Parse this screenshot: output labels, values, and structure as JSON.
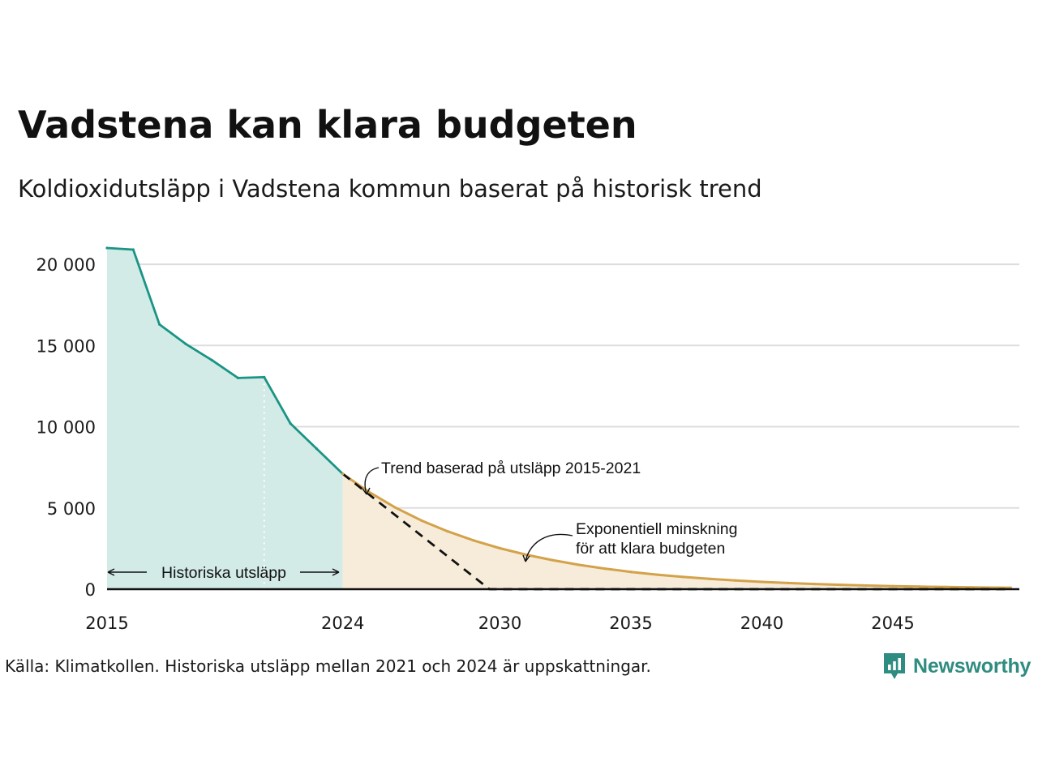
{
  "header": {
    "title": "Vadstena kan klara budgeten",
    "subtitle": "Koldioxidutsläpp i Vadstena kommun baserat på historisk trend"
  },
  "footer": {
    "source": "Källa: Klimatkollen. Historiska utsläpp mellan 2021 och 2024 är uppskattningar.",
    "brand": "Newsworthy"
  },
  "colors": {
    "historical_line": "#1a9484",
    "historical_fill": "#d2ebe7",
    "budget_line": "#d3a24a",
    "budget_fill": "#f6ecd9",
    "trend_line": "#111111",
    "grid": "#dddddd",
    "brand": "#2f8c80"
  },
  "chart_data": {
    "type": "area",
    "xlim": [
      2015,
      2049.5
    ],
    "ylim": [
      0,
      21500
    ],
    "y_ticks": [
      {
        "value": 0,
        "label": "0"
      },
      {
        "value": 5000,
        "label": "5 000"
      },
      {
        "value": 10000,
        "label": "10 000"
      },
      {
        "value": 15000,
        "label": "15 000"
      },
      {
        "value": 20000,
        "label": "20 000"
      }
    ],
    "x_ticks": [
      {
        "value": 2015,
        "label": "2015"
      },
      {
        "value": 2024,
        "label": "2024"
      },
      {
        "value": 2030,
        "label": "2030"
      },
      {
        "value": 2035,
        "label": "2035"
      },
      {
        "value": 2040,
        "label": "2040"
      },
      {
        "value": 2045,
        "label": "2045"
      }
    ],
    "grid": true,
    "estimate_start_year": 2021,
    "series": [
      {
        "key": "historical",
        "style": "line-area",
        "x": [
          2015,
          2016,
          2017,
          2018,
          2019,
          2020,
          2021,
          2022,
          2023,
          2024
        ],
        "y": [
          21000,
          20900,
          16300,
          15100,
          14100,
          13000,
          13050,
          10200,
          8650,
          7100
        ]
      },
      {
        "key": "budget",
        "style": "line-area",
        "x": [
          2024,
          2025,
          2026,
          2027,
          2028,
          2029,
          2030,
          2031,
          2032,
          2033,
          2034,
          2035,
          2036,
          2037,
          2038,
          2039,
          2040,
          2041,
          2042,
          2043,
          2044,
          2045,
          2046,
          2047,
          2048,
          2049,
          2049.5
        ],
        "y": [
          7100,
          5980,
          5030,
          4230,
          3560,
          3000,
          2520,
          2120,
          1790,
          1500,
          1265,
          1065,
          895,
          755,
          635,
          535,
          450,
          380,
          320,
          270,
          225,
          190,
          160,
          135,
          112,
          95,
          88
        ]
      },
      {
        "key": "trend",
        "style": "dashed",
        "x": [
          2024,
          2029.6,
          2049.5
        ],
        "y": [
          7100,
          0,
          0
        ]
      }
    ],
    "annotations": [
      {
        "key": "historical",
        "lines": [
          "Historiska utsläpp"
        ]
      },
      {
        "key": "trend",
        "lines": [
          "Trend baserad på utsläpp 2015-2021"
        ]
      },
      {
        "key": "budget",
        "lines": [
          "Exponentiell minskning",
          "för att klara budgeten"
        ]
      }
    ]
  }
}
